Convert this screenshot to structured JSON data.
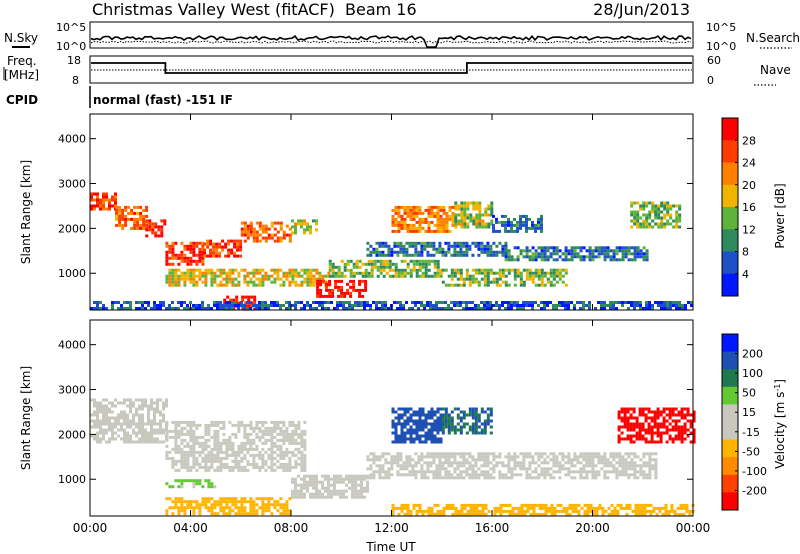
{
  "header": {
    "title": "Christmas Valley West (fitACF)",
    "beam": "Beam 16",
    "date": "28/Jun/2013"
  },
  "status_panels": {
    "nsky_label": "N.Sky",
    "nsearch_label": "N.Search",
    "noise_ticks": [
      "10^5",
      "10^0"
    ],
    "freq_label": "Freq.",
    "freq_unit": "[MHz]",
    "freq_ticks": [
      "18",
      "8"
    ],
    "nave_label": "Nave",
    "nave_ticks": [
      "60",
      "0"
    ],
    "cpid_label": "CPID",
    "cpid_text": "normal (fast) -151 IF"
  },
  "colors": {
    "power": [
      "#0018ff",
      "#1e50c8",
      "#2e8a5a",
      "#5fb33a",
      "#f0b400",
      "#ff8000",
      "#ff3c00",
      "#ff0000"
    ],
    "velocity": [
      "#ff0000",
      "#ff4000",
      "#ff8c00",
      "#ffb400",
      "#c8c8be",
      "#c8c8be",
      "#64c832",
      "#1e7850",
      "#1e50b4",
      "#0018ff"
    ]
  },
  "chart_data": [
    {
      "type": "heatmap",
      "name": "power",
      "ylabel": "Slant Range [km]",
      "yticks": [
        1000,
        2000,
        3000,
        4000
      ],
      "ylim": [
        180,
        4550
      ],
      "xlim_hours": [
        0,
        24
      ],
      "colorbar": {
        "label": "Power [dB]",
        "ticks": [
          "4",
          "8",
          "12",
          "16",
          "20",
          "24",
          "28"
        ],
        "range": [
          0,
          32
        ]
      },
      "bands": [
        {
          "t": [
            0.0,
            1.0
          ],
          "r": [
            2400,
            2800
          ],
          "v": 26
        },
        {
          "t": [
            1.0,
            2.2
          ],
          "r": [
            2000,
            2500
          ],
          "v": 24
        },
        {
          "t": [
            2.2,
            3.0
          ],
          "r": [
            1800,
            2200
          ],
          "v": 28
        },
        {
          "t": [
            3.0,
            4.5
          ],
          "r": [
            1200,
            1700
          ],
          "v": 28
        },
        {
          "t": [
            4.5,
            6.0
          ],
          "r": [
            1350,
            1750
          ],
          "v": 26
        },
        {
          "t": [
            6.0,
            8.0
          ],
          "r": [
            1700,
            2150
          ],
          "v": 24
        },
        {
          "t": [
            8.0,
            9.0
          ],
          "r": [
            1900,
            2200
          ],
          "v": 16
        },
        {
          "t": [
            3.0,
            9.5
          ],
          "r": [
            700,
            1100
          ],
          "v": 18
        },
        {
          "t": [
            9.0,
            11.0
          ],
          "r": [
            450,
            850
          ],
          "v": 30
        },
        {
          "t": [
            5.3,
            6.6
          ],
          "r": [
            200,
            500
          ],
          "v": 30
        },
        {
          "t": [
            11.0,
            16.5
          ],
          "r": [
            1400,
            1700
          ],
          "v": 8
        },
        {
          "t": [
            16.5,
            22.2
          ],
          "r": [
            1300,
            1600
          ],
          "v": 8
        },
        {
          "t": [
            12.0,
            14.5
          ],
          "r": [
            1900,
            2500
          ],
          "v": 22
        },
        {
          "t": [
            14.5,
            16.0
          ],
          "r": [
            2000,
            2600
          ],
          "v": 16
        },
        {
          "t": [
            16.0,
            18.0
          ],
          "r": [
            1900,
            2300
          ],
          "v": 8
        },
        {
          "t": [
            21.5,
            23.5
          ],
          "r": [
            2000,
            2600
          ],
          "v": 14
        },
        {
          "t": [
            9.5,
            14.0
          ],
          "r": [
            900,
            1300
          ],
          "v": 14
        },
        {
          "t": [
            14.0,
            19.0
          ],
          "r": [
            700,
            1100
          ],
          "v": 14
        },
        {
          "t": [
            0.0,
            24.0
          ],
          "r": [
            200,
            380
          ],
          "v": 6
        }
      ]
    },
    {
      "type": "heatmap",
      "name": "velocity",
      "ylabel": "Slant Range [km]",
      "xlabel": "Time UT",
      "xticks": [
        "00:00",
        "04:00",
        "08:00",
        "12:00",
        "16:00",
        "20:00",
        "00:00"
      ],
      "yticks": [
        1000,
        2000,
        3000,
        4000
      ],
      "ylim": [
        180,
        4550
      ],
      "xlim_hours": [
        0,
        24
      ],
      "colorbar": {
        "label": "Velocity [m s^-1]",
        "ticks": [
          "200",
          "100",
          "50",
          "15",
          "-15",
          "-50",
          "-100",
          "-200"
        ],
        "range": [
          -250,
          250
        ]
      },
      "bands": [
        {
          "t": [
            0.0,
            3.0
          ],
          "r": [
            1800,
            2800
          ],
          "v": 0
        },
        {
          "t": [
            3.0,
            8.5
          ],
          "r": [
            1200,
            2300
          ],
          "v": 0
        },
        {
          "t": [
            8.0,
            11.0
          ],
          "r": [
            600,
            1100
          ],
          "v": 0
        },
        {
          "t": [
            11.0,
            22.5
          ],
          "r": [
            1000,
            1600
          ],
          "v": 0
        },
        {
          "t": [
            3.0,
            8.0
          ],
          "r": [
            200,
            600
          ],
          "v": -80
        },
        {
          "t": [
            12.0,
            24.0
          ],
          "r": [
            200,
            450
          ],
          "v": -70
        },
        {
          "t": [
            12.0,
            14.0
          ],
          "r": [
            1800,
            2600
          ],
          "v": 180
        },
        {
          "t": [
            14.0,
            16.0
          ],
          "r": [
            2000,
            2600
          ],
          "v": 150
        },
        {
          "t": [
            21.0,
            24.0
          ],
          "r": [
            1800,
            2600
          ],
          "v": -230
        },
        {
          "t": [
            3.0,
            5.0
          ],
          "r": [
            800,
            1000
          ],
          "v": 60
        }
      ]
    }
  ]
}
